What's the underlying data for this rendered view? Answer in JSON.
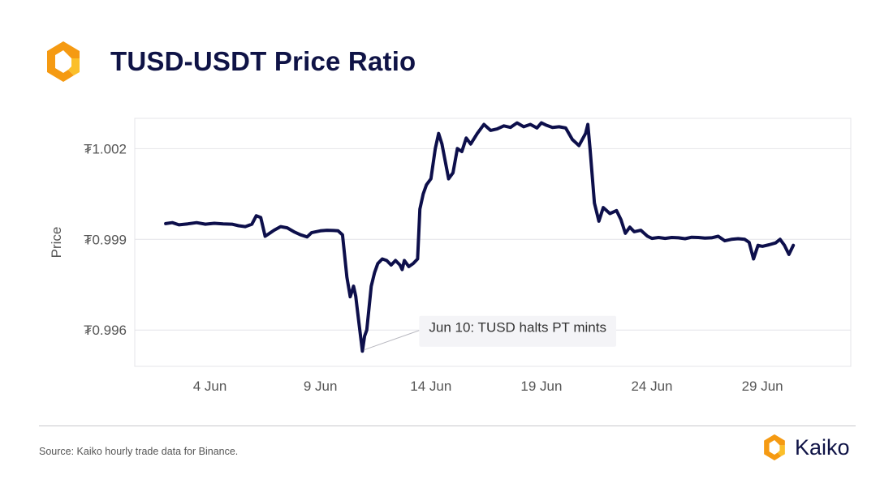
{
  "page": {
    "title": "TUSD-USDT Price Ratio",
    "source": "Source: Kaiko hourly trade data for Binance.",
    "brand_name": "Kaiko"
  },
  "colors": {
    "line": "#0d0f4b",
    "title": "#0f1346",
    "logo_orange": "#f59a12",
    "logo_yellow": "#fbbf2a",
    "grid": "#e4e4e8",
    "tick_text": "#555555"
  },
  "icons": {
    "logo": "kaiko-logo-icon",
    "brand": "kaiko-logo-icon"
  },
  "chart_data": {
    "type": "line",
    "title": "",
    "xlabel": "",
    "ylabel": "Price",
    "x_unit": "day of June (date)",
    "x_ticks": [
      {
        "x": 4,
        "label": "4 Jun"
      },
      {
        "x": 9,
        "label": "9 Jun"
      },
      {
        "x": 14,
        "label": "14 Jun"
      },
      {
        "x": 19,
        "label": "19 Jun"
      },
      {
        "x": 24,
        "label": "24 Jun"
      },
      {
        "x": 29,
        "label": "29 Jun"
      }
    ],
    "y_ticks": [
      {
        "y": 0.996,
        "label": "₮0.996"
      },
      {
        "y": 0.999,
        "label": "₮0.999"
      },
      {
        "y": 1.002,
        "label": "₮1.002"
      }
    ],
    "xlim": [
      0.6,
      33.0
    ],
    "ylim": [
      0.9948,
      1.003
    ],
    "grid": true,
    "annotation": {
      "x": 10.9,
      "y": 0.99529,
      "text": "Jun 10: TUSD halts PT mints"
    },
    "series": [
      {
        "name": "",
        "x": [
          2.0,
          2.3,
          2.6,
          3.0,
          3.4,
          3.8,
          4.2,
          4.6,
          5.0,
          5.3,
          5.6,
          5.9,
          6.1,
          6.3,
          6.5,
          6.7,
          6.9,
          7.2,
          7.5,
          7.8,
          8.1,
          8.4,
          8.6,
          8.8,
          9.0,
          9.3,
          9.6,
          9.8,
          10.0,
          10.2,
          10.35,
          10.5,
          10.6,
          10.65,
          10.75,
          10.9,
          11.0,
          11.1,
          11.3,
          11.45,
          11.6,
          11.8,
          12.0,
          12.2,
          12.4,
          12.6,
          12.7,
          12.8,
          13.0,
          13.2,
          13.4,
          13.5,
          13.65,
          13.8,
          14.0,
          14.2,
          14.35,
          14.5,
          14.8,
          15.0,
          15.2,
          15.4,
          15.6,
          15.8,
          16.1,
          16.4,
          16.7,
          17.0,
          17.3,
          17.6,
          17.9,
          18.2,
          18.5,
          18.8,
          19.0,
          19.2,
          19.5,
          19.8,
          20.1,
          20.4,
          20.7,
          21.0,
          21.1,
          21.2,
          21.4,
          21.6,
          21.8,
          22.1,
          22.4,
          22.6,
          22.8,
          23.0,
          23.2,
          23.5,
          23.8,
          24.0,
          24.3,
          24.6,
          24.9,
          25.2,
          25.5,
          25.8,
          26.1,
          26.4,
          26.7,
          27.0,
          27.3,
          27.6,
          27.9,
          28.2,
          28.4,
          28.6,
          28.8,
          29.0,
          29.3,
          29.6,
          29.8,
          30.0,
          30.2,
          30.4
        ],
        "y": [
          0.99952,
          0.99955,
          0.99948,
          0.99951,
          0.99955,
          0.9995,
          0.99953,
          0.99951,
          0.9995,
          0.99945,
          0.99942,
          0.9995,
          0.99978,
          0.99972,
          0.9991,
          0.9992,
          0.9993,
          0.99942,
          0.99938,
          0.99925,
          0.99915,
          0.99908,
          0.99922,
          0.99925,
          0.99928,
          0.9993,
          0.99929,
          0.99928,
          0.99915,
          0.99775,
          0.9971,
          0.99745,
          0.99712,
          0.9968,
          0.9962,
          0.9953,
          0.9958,
          0.996,
          0.99745,
          0.9979,
          0.9982,
          0.99835,
          0.9983,
          0.99815,
          0.9983,
          0.99815,
          0.998,
          0.9983,
          0.9981,
          0.9982,
          0.99835,
          1.0,
          1.0005,
          1.0008,
          1.001,
          1.002,
          1.0025,
          1.00215,
          1.001,
          1.0012,
          1.002,
          1.0019,
          1.00235,
          1.00215,
          1.0025,
          1.0028,
          1.0026,
          1.00265,
          1.00275,
          1.0027,
          1.00285,
          1.00272,
          1.0028,
          1.00268,
          1.00285,
          1.00278,
          1.0027,
          1.00272,
          1.00268,
          1.0023,
          1.0021,
          1.0025,
          1.0028,
          1.002,
          1.0002,
          0.9996,
          1.00005,
          0.99985,
          0.99995,
          0.99965,
          0.9992,
          0.9994,
          0.99925,
          0.9993,
          0.9991,
          0.99903,
          0.99906,
          0.99903,
          0.99906,
          0.99905,
          0.99902,
          0.99907,
          0.99906,
          0.99904,
          0.99905,
          0.9991,
          0.99895,
          0.999,
          0.99902,
          0.999,
          0.9989,
          0.99835,
          0.9988,
          0.99877,
          0.99882,
          0.99888,
          0.999,
          0.9988,
          0.9985,
          0.9988
        ]
      }
    ]
  }
}
